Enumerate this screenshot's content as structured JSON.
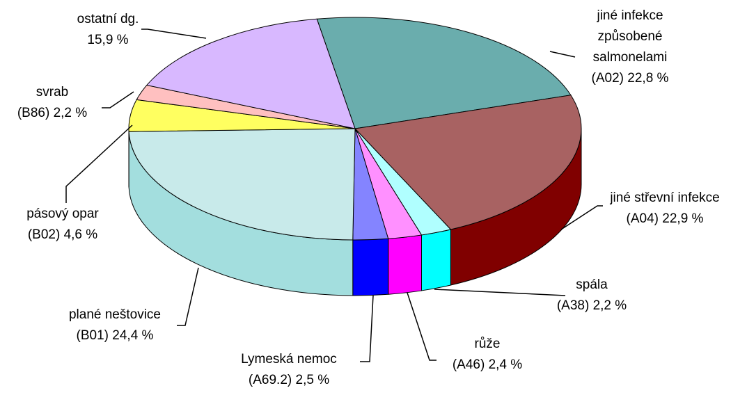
{
  "chart_data": {
    "type": "pie3d",
    "categories": [
      "jiné infekce\nzpůsobené\nsalmonelami\n(A02)",
      "jiné střevní infekce\n(A04)",
      "spála\n(A38)",
      "růže\n(A46)",
      "Lymeská nemoc\n(A69.2)",
      "plané neštovice\n(B01)",
      "pásový opar\n(B02)",
      "svrab\n(B86)",
      "ostatní dg."
    ],
    "values": [
      22.8,
      22.9,
      2.2,
      2.4,
      2.5,
      24.4,
      4.6,
      2.2,
      15.9
    ],
    "value_labels": [
      "22,8 %",
      "22,9 %",
      "2,2 %",
      "2,4 %",
      "2,5 %",
      "24,4 %",
      "4,6 %",
      "2,2 %",
      "15,9 %"
    ],
    "colors": [
      "#6aadad",
      "#a86262",
      "#b0ffff",
      "#ff90ff",
      "#8484ff",
      "#c8eaea",
      "#ffff60",
      "#ffc0c0",
      "#d8b8ff"
    ],
    "side_colors": [
      "#3f8080",
      "#800000",
      "#00ffff",
      "#ff00ff",
      "#0000ff",
      "#a3dede",
      "#e0e000",
      "#ff9090",
      "#b090e0"
    ]
  }
}
